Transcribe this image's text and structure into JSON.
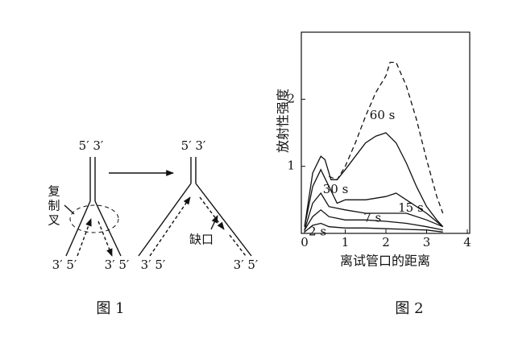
{
  "figure1": {
    "labels": [
      "5′ 3′",
      "3′ 5′",
      "3′ 5′",
      "5′ 3′",
      "3′ 5′",
      "3′ 5′"
    ],
    "fork_label": [
      "复",
      "制",
      "叉"
    ],
    "gap_label": "缺口",
    "caption": "图 1"
  },
  "chart_data": {
    "type": "line",
    "ylabel": "放射性强度",
    "xlabel": "离试管口的距离",
    "caption": "图 2",
    "xlim": [
      0,
      4
    ],
    "ylim": [
      0,
      3
    ],
    "xticks": [
      0,
      1,
      2,
      3,
      4
    ],
    "yticks": [
      1,
      2
    ],
    "color": "#111111",
    "series": [
      {
        "x": [
          0.6,
          0.8,
          1,
          1.25,
          1.5,
          1.75,
          2,
          2.1,
          2.25,
          2.5,
          2.75,
          3,
          3.25,
          3.4
        ],
        "values": [
          0.85,
          0.8,
          1.0,
          1.35,
          1.75,
          2.1,
          2.35,
          2.55,
          2.55,
          2.2,
          1.7,
          1.1,
          0.55,
          0.3
        ],
        "dashed": true
      },
      {
        "name": "60 s",
        "x": [
          0,
          0.2,
          0.4,
          0.5,
          0.65,
          0.8,
          1,
          1.25,
          1.5,
          1.75,
          2,
          2.25,
          2.5,
          2.75,
          3,
          3.25,
          3.4
        ],
        "values": [
          0.1,
          0.9,
          1.15,
          1.1,
          0.8,
          0.8,
          0.95,
          1.15,
          1.35,
          1.45,
          1.5,
          1.35,
          1.05,
          0.7,
          0.4,
          0.2,
          0.1
        ]
      },
      {
        "name": "30 s",
        "x": [
          0,
          0.2,
          0.4,
          0.6,
          0.8,
          1,
          1.5,
          2,
          2.25,
          2.5,
          3,
          3.4
        ],
        "values": [
          0.1,
          0.7,
          0.95,
          0.7,
          0.45,
          0.5,
          0.5,
          0.55,
          0.6,
          0.5,
          0.3,
          0.1
        ]
      },
      {
        "name": "15 s",
        "x": [
          0,
          0.2,
          0.4,
          0.6,
          1,
          1.5,
          2,
          2.5,
          3,
          3.4
        ],
        "values": [
          0.05,
          0.45,
          0.6,
          0.4,
          0.35,
          0.3,
          0.3,
          0.3,
          0.2,
          0.1
        ]
      },
      {
        "name": "7 s",
        "x": [
          0,
          0.2,
          0.4,
          0.6,
          1,
          1.5,
          2,
          2.5,
          3,
          3.4
        ],
        "values": [
          0.05,
          0.25,
          0.35,
          0.25,
          0.2,
          0.2,
          0.18,
          0.15,
          0.1,
          0.05
        ]
      },
      {
        "name": "2 s",
        "x": [
          0,
          0.2,
          0.4,
          0.6,
          1,
          1.5,
          2,
          2.5,
          3,
          3.4
        ],
        "values": [
          0.02,
          0.12,
          0.15,
          0.1,
          0.08,
          0.08,
          0.07,
          0.06,
          0.05,
          0.02
        ]
      }
    ]
  }
}
